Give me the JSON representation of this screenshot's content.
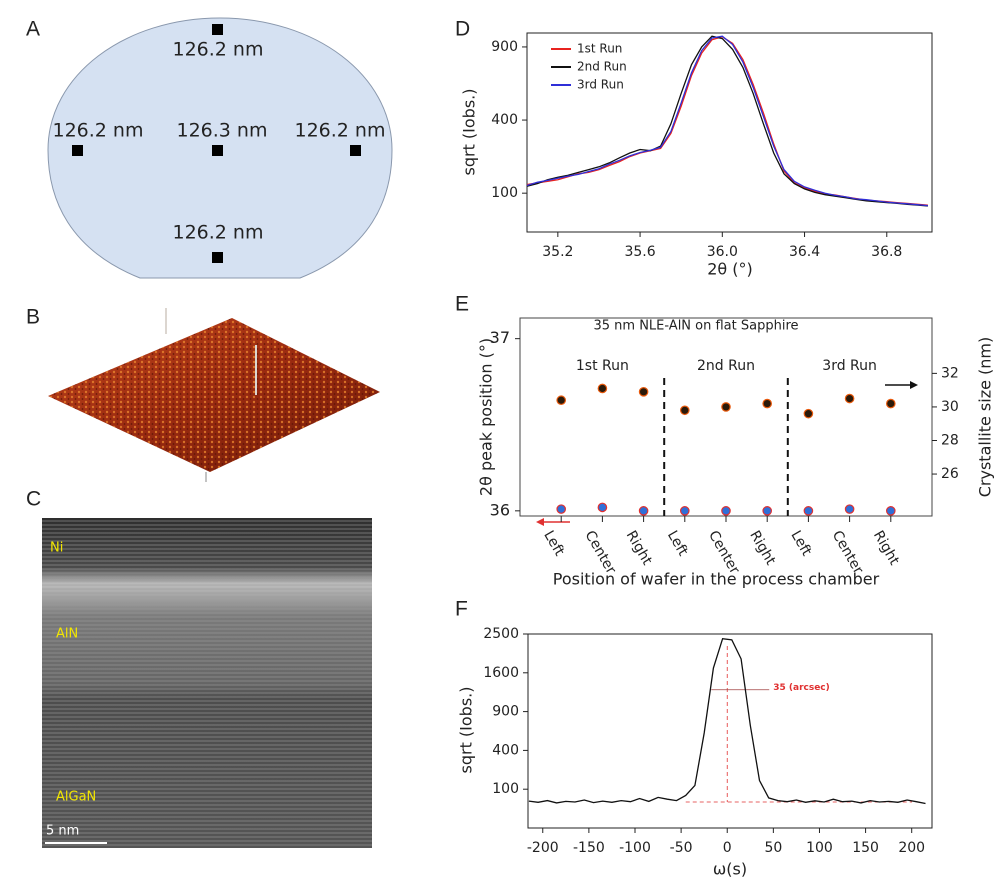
{
  "wafer": {
    "label": "A",
    "measurements": [
      "126.2 nm",
      "126.2 nm",
      "126.3 nm",
      "126.2 nm",
      "126.2 nm"
    ]
  },
  "afm": {
    "label": "B"
  },
  "tem": {
    "label": "C",
    "layers": [
      "Ni",
      "AlN",
      "AlGaN"
    ],
    "scale_bar": "5 nm"
  },
  "chart_data": [
    {
      "type": "line",
      "label": "D",
      "xlabel": "2θ (°)",
      "ylabel": "sqrt (Iobs.)",
      "yscale": "sqrt",
      "xlim": [
        35.05,
        37.02
      ],
      "ylim": [
        22,
        1018
      ],
      "xticks": [
        35.2,
        35.6,
        {
          "value": 36,
          "label": "36.0"
        },
        36.4,
        36.8
      ],
      "yticks": [
        100,
        400,
        900
      ],
      "legend": "upper left",
      "x": [
        35.05,
        35.1,
        35.15,
        35.2,
        35.25,
        35.3,
        35.35,
        35.4,
        35.45,
        35.5,
        35.55,
        35.6,
        35.65,
        35.7,
        35.75,
        35.8,
        35.85,
        35.9,
        35.95,
        36.0,
        36.05,
        36.1,
        36.15,
        36.2,
        36.25,
        36.3,
        36.35,
        36.4,
        36.45,
        36.5,
        36.55,
        36.6,
        36.65,
        36.7,
        36.75,
        36.8,
        36.85,
        36.9,
        36.95,
        37.0
      ],
      "series": [
        {
          "name": "1st Run",
          "color": "#e8231f",
          "values": [
            125,
            130,
            135,
            140,
            150,
            160,
            165,
            175,
            190,
            205,
            225,
            240,
            250,
            260,
            330,
            480,
            680,
            850,
            960,
            985,
            930,
            800,
            620,
            440,
            280,
            170,
            130,
            115,
            105,
            98,
            95,
            90,
            86,
            82,
            80,
            78,
            76,
            74,
            72,
            70
          ]
        },
        {
          "name": "2nd Run",
          "color": "#111111",
          "values": [
            120,
            128,
            140,
            148,
            155,
            165,
            175,
            185,
            200,
            220,
            240,
            255,
            250,
            270,
            380,
            560,
            760,
            900,
            990,
            970,
            880,
            740,
            560,
            380,
            240,
            160,
            128,
            112,
            102,
            96,
            92,
            88,
            84,
            80,
            78,
            76,
            74,
            72,
            70,
            68
          ]
        },
        {
          "name": "3rd Run",
          "color": "#2f2fd8",
          "values": [
            122,
            132,
            138,
            145,
            152,
            158,
            168,
            178,
            195,
            210,
            228,
            242,
            252,
            265,
            340,
            500,
            700,
            870,
            975,
            990,
            920,
            780,
            600,
            420,
            270,
            175,
            135,
            118,
            108,
            100,
            94,
            90,
            85,
            83,
            80,
            77,
            75,
            73,
            71,
            69
          ]
        }
      ]
    },
    {
      "type": "scatter",
      "label": "E",
      "title": "35 nm NLE-AlN on flat Sapphire",
      "xlabel": "Position of wafer in the process chamber",
      "ylabel": "2θ peak position (°)",
      "y2label": "Crystallite size (nm)",
      "categories": [
        "Left",
        "Center",
        "Right",
        "Left",
        "Center",
        "Right",
        "Left",
        "Center",
        "Right"
      ],
      "groups": [
        "1st Run",
        "2nd Run",
        "3rd Run"
      ],
      "ylim": [
        35.97,
        37.12
      ],
      "yticks": [
        36,
        37
      ],
      "y2lim": [
        23.5,
        35.3
      ],
      "y2ticks": [
        26,
        28,
        30,
        32
      ],
      "series": [
        {
          "color": "#2f6fd8",
          "edge": "#e03131",
          "values": [
            36.01,
            36.02,
            36.0,
            36.0,
            36.0,
            36.0,
            36.0,
            36.01,
            36.0
          ]
        },
        {
          "color": "#2b1a0a",
          "edge": "#e8590c",
          "axis": "y2",
          "values": [
            30.4,
            31.1,
            30.9,
            29.8,
            30.0,
            30.2,
            29.6,
            30.5,
            30.2
          ]
        }
      ]
    },
    {
      "type": "line",
      "label": "F",
      "xlabel": "ω(s)",
      "ylabel": "sqrt (Iobs.)",
      "yscale": "sqrt",
      "xlim": [
        -216,
        222
      ],
      "ylim": [
        0,
        2500
      ],
      "xticks": [
        -200,
        -150,
        -100,
        -50,
        0,
        50,
        100,
        150,
        200
      ],
      "yticks": [
        100,
        400,
        900,
        1600,
        2500
      ],
      "annotation": {
        "text": "35 (arcsec)",
        "center": 0,
        "level": 1270,
        "baseline": 45,
        "color": "#e03131"
      },
      "x": [
        -215,
        -205,
        -195,
        -185,
        -175,
        -165,
        -155,
        -145,
        -135,
        -125,
        -115,
        -105,
        -95,
        -85,
        -75,
        -65,
        -55,
        -45,
        -35,
        -25,
        -15,
        -5,
        5,
        15,
        25,
        35,
        45,
        55,
        65,
        75,
        85,
        95,
        105,
        115,
        125,
        135,
        145,
        155,
        165,
        175,
        185,
        195,
        205,
        215
      ],
      "series": [
        {
          "color": "#111111",
          "values": [
            48,
            44,
            50,
            42,
            47,
            45,
            52,
            43,
            48,
            44,
            50,
            46,
            58,
            47,
            62,
            55,
            50,
            70,
            120,
            600,
            1700,
            2380,
            2350,
            1900,
            700,
            150,
            60,
            50,
            46,
            52,
            44,
            49,
            45,
            55,
            46,
            48,
            42,
            50,
            45,
            47,
            44,
            52,
            46,
            40
          ]
        }
      ]
    }
  ]
}
